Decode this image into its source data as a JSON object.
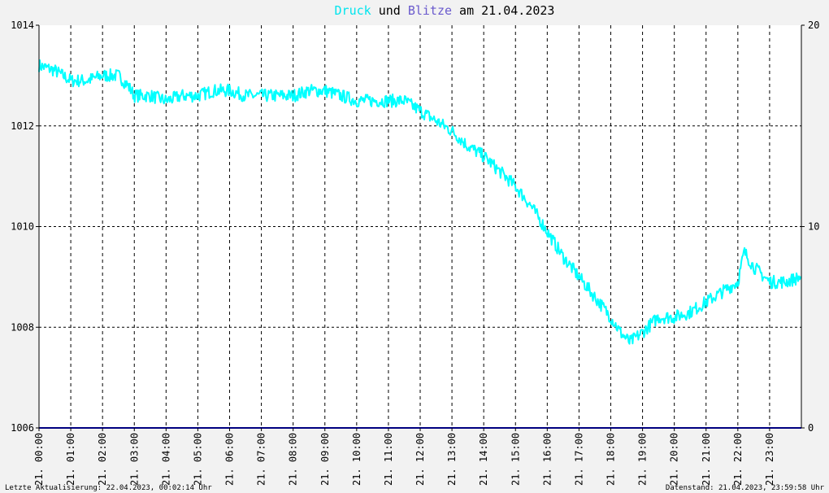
{
  "title": {
    "part1": "Druck",
    "part2": " und ",
    "part3": "Blitze",
    "part4": " am 21.04.2023"
  },
  "footer": {
    "left": "Letzte Aktualisierung: 22.04.2023, 00:02:14 Uhr",
    "right": "Datenstand: 21.04.2023, 23:59:58 Uhr"
  },
  "colors": {
    "druck": "#00ffff",
    "blitze": "#6a5acd",
    "background": "#f2f2f2",
    "plot_background": "#ffffff",
    "baseline": "#000080"
  },
  "chart_data": {
    "type": "line",
    "title": "Druck und Blitze am 21.04.2023",
    "grid": true,
    "x_unit": "hours",
    "xlim": [
      0,
      24
    ],
    "y_left": {
      "ylim": [
        1006,
        1014
      ],
      "ticks": [
        "1006",
        "1008",
        "1010",
        "1012",
        "1014"
      ]
    },
    "y_right": {
      "ylim": [
        0,
        20
      ],
      "ticks": [
        "0",
        "10",
        "20"
      ]
    },
    "x_tick_labels": [
      "21. 00:00",
      "21. 01:00",
      "21. 02:00",
      "21. 03:00",
      "21. 04:00",
      "21. 05:00",
      "21. 06:00",
      "21. 07:00",
      "21. 08:00",
      "21. 09:00",
      "21. 10:00",
      "21. 11:00",
      "21. 12:00",
      "21. 13:00",
      "21. 14:00",
      "21. 15:00",
      "21. 16:00",
      "21. 17:00",
      "21. 18:00",
      "21. 19:00",
      "21. 20:00",
      "21. 21:00",
      "21. 22:00",
      "21. 23:00"
    ],
    "series": [
      {
        "name": "Druck",
        "axis": "left",
        "x": [
          0,
          0.5,
          1,
          1.5,
          2,
          2.5,
          2.8,
          3,
          3.5,
          4,
          4.5,
          5,
          5.5,
          6,
          6.5,
          7,
          7.5,
          8,
          8.5,
          9,
          9.5,
          10,
          10.5,
          11,
          11.5,
          12,
          12.5,
          13,
          13.5,
          14,
          14.5,
          15,
          15.5,
          16,
          16.5,
          17,
          17.5,
          18,
          18.3,
          18.6,
          19,
          19.5,
          20,
          20.5,
          21,
          21.5,
          22,
          22.2,
          22.5,
          23,
          23.5,
          24
        ],
        "y": [
          1013.2,
          1013.1,
          1012.9,
          1012.9,
          1013.0,
          1013.0,
          1012.8,
          1012.6,
          1012.6,
          1012.5,
          1012.6,
          1012.6,
          1012.7,
          1012.7,
          1012.6,
          1012.6,
          1012.6,
          1012.6,
          1012.7,
          1012.7,
          1012.6,
          1012.5,
          1012.5,
          1012.5,
          1012.5,
          1012.3,
          1012.1,
          1011.9,
          1011.6,
          1011.4,
          1011.1,
          1010.8,
          1010.4,
          1009.9,
          1009.4,
          1009.0,
          1008.6,
          1008.2,
          1007.9,
          1007.7,
          1007.9,
          1008.2,
          1008.2,
          1008.3,
          1008.5,
          1008.7,
          1008.9,
          1009.5,
          1009.2,
          1008.9,
          1008.9,
          1009.0
        ]
      },
      {
        "name": "Blitze",
        "axis": "right",
        "x": [
          0,
          24
        ],
        "y": [
          0,
          0
        ]
      }
    ]
  }
}
